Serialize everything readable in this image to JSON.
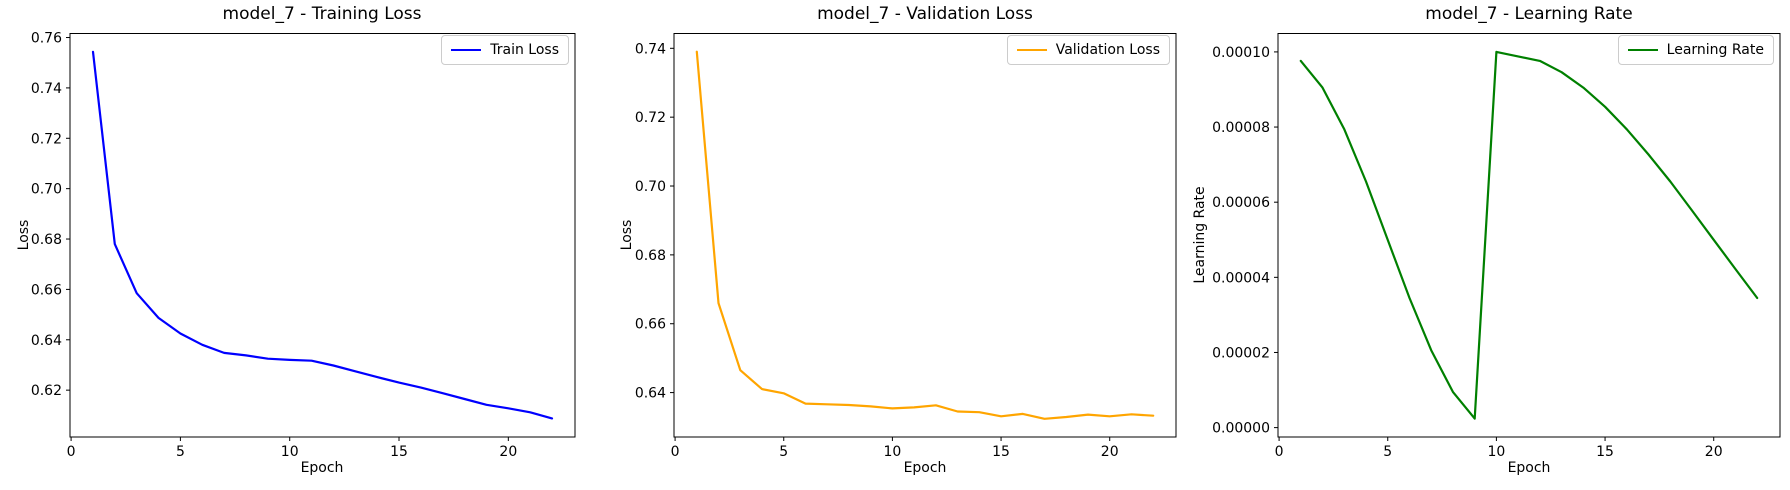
{
  "figure": {
    "background": "#ffffff",
    "text_color": "#000000"
  },
  "chart_data": [
    {
      "type": "line",
      "title": "model_7 - Training Loss",
      "xlabel": "Epoch",
      "ylabel": "Loss",
      "legend_label": "Train Loss",
      "legend_position": "upper right",
      "color": "#0000ff",
      "grid": false,
      "x": [
        1,
        2,
        3,
        4,
        5,
        6,
        7,
        8,
        9,
        10,
        11,
        12,
        13,
        14,
        15,
        16,
        17,
        18,
        19,
        20,
        21,
        22
      ],
      "y": [
        0.7543,
        0.678,
        0.6585,
        0.6487,
        0.6425,
        0.638,
        0.6348,
        0.6338,
        0.6325,
        0.632,
        0.6317,
        0.6298,
        0.6275,
        0.6252,
        0.623,
        0.621,
        0.6188,
        0.6165,
        0.6142,
        0.6128,
        0.6112,
        0.6088
      ],
      "xlim": [
        -0.05,
        23.05
      ],
      "ylim": [
        0.6014,
        0.7616
      ],
      "xticks": [
        0,
        5,
        10,
        15,
        20
      ],
      "xtick_labels": [
        "0",
        "5",
        "10",
        "15",
        "20"
      ],
      "yticks": [
        0.62,
        0.64,
        0.66,
        0.68,
        0.7,
        0.72,
        0.74,
        0.76
      ],
      "ytick_labels": [
        "0.62",
        "0.64",
        "0.66",
        "0.68",
        "0.70",
        "0.72",
        "0.74",
        "0.76"
      ]
    },
    {
      "type": "line",
      "title": "model_7 - Validation Loss",
      "xlabel": "Epoch",
      "ylabel": "Loss",
      "legend_label": "Validation Loss",
      "legend_position": "upper right",
      "color": "#ffa500",
      "grid": false,
      "x": [
        1,
        2,
        3,
        4,
        5,
        6,
        7,
        8,
        9,
        10,
        11,
        12,
        13,
        14,
        15,
        16,
        17,
        18,
        19,
        20,
        21,
        22
      ],
      "y": [
        0.739,
        0.666,
        0.6465,
        0.641,
        0.6398,
        0.6368,
        0.6366,
        0.6364,
        0.636,
        0.6354,
        0.6357,
        0.6363,
        0.6345,
        0.6343,
        0.6331,
        0.6338,
        0.6324,
        0.6329,
        0.6336,
        0.6331,
        0.6337,
        0.6333
      ],
      "xlim": [
        -0.05,
        23.05
      ],
      "ylim": [
        0.6271,
        0.7443
      ],
      "xticks": [
        0,
        5,
        10,
        15,
        20
      ],
      "xtick_labels": [
        "0",
        "5",
        "10",
        "15",
        "20"
      ],
      "yticks": [
        0.64,
        0.66,
        0.68,
        0.7,
        0.72,
        0.74
      ],
      "ytick_labels": [
        "0.64",
        "0.66",
        "0.68",
        "0.70",
        "0.72",
        "0.74"
      ]
    },
    {
      "type": "line",
      "title": "model_7 - Learning Rate",
      "xlabel": "Epoch",
      "ylabel": "Learning Rate",
      "legend_label": "Learning Rate",
      "legend_position": "upper right",
      "color": "#008000",
      "grid": false,
      "x": [
        1,
        2,
        3,
        4,
        5,
        6,
        7,
        8,
        9,
        10,
        11,
        12,
        13,
        14,
        15,
        16,
        17,
        18,
        19,
        20,
        21,
        22
      ],
      "y": [
        9.76e-05,
        9.05e-05,
        7.94e-05,
        6.55e-05,
        5e-05,
        3.45e-05,
        2.06e-05,
        9.5e-06,
        2.4e-06,
        0.0001,
        9.88e-05,
        9.76e-05,
        9.46e-05,
        9.05e-05,
        8.54e-05,
        7.94e-05,
        7.27e-05,
        6.55e-05,
        5.78e-05,
        5e-05,
        4.22e-05,
        3.45e-05
      ],
      "xlim": [
        -0.05,
        23.05
      ],
      "ylim": [
        -2.5e-06,
        0.0001049
      ],
      "xticks": [
        0,
        5,
        10,
        15,
        20
      ],
      "xtick_labels": [
        "0",
        "5",
        "10",
        "15",
        "20"
      ],
      "yticks": [
        0,
        2e-05,
        4e-05,
        6e-05,
        8e-05,
        0.0001
      ],
      "ytick_labels": [
        "0.00000",
        "0.00002",
        "0.00004",
        "0.00006",
        "0.00008",
        "0.00010"
      ]
    }
  ]
}
